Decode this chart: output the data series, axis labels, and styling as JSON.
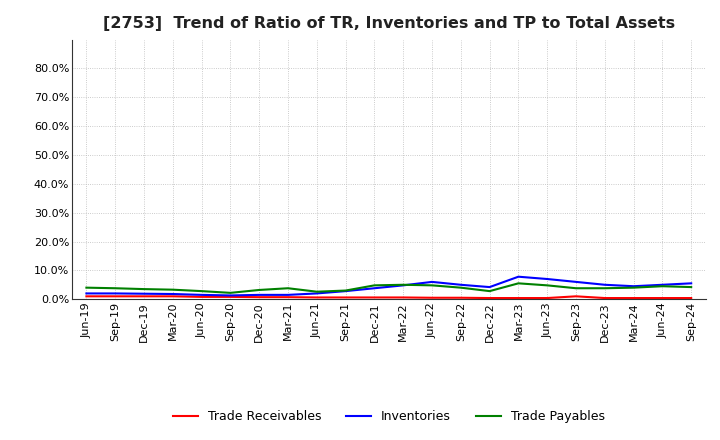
{
  "title": "[2753]  Trend of Ratio of TR, Inventories and TP to Total Assets",
  "x_labels": [
    "Jun-19",
    "Sep-19",
    "Dec-19",
    "Mar-20",
    "Jun-20",
    "Sep-20",
    "Dec-20",
    "Mar-21",
    "Jun-21",
    "Sep-21",
    "Dec-21",
    "Mar-22",
    "Jun-22",
    "Sep-22",
    "Dec-22",
    "Mar-23",
    "Jun-23",
    "Sep-23",
    "Dec-23",
    "Mar-24",
    "Jun-24",
    "Sep-24"
  ],
  "trade_receivables": [
    0.01,
    0.01,
    0.01,
    0.01,
    0.008,
    0.008,
    0.007,
    0.007,
    0.006,
    0.006,
    0.006,
    0.006,
    0.005,
    0.005,
    0.004,
    0.004,
    0.004,
    0.01,
    0.004,
    0.004,
    0.004,
    0.004
  ],
  "inventories": [
    0.02,
    0.02,
    0.019,
    0.018,
    0.015,
    0.013,
    0.015,
    0.015,
    0.02,
    0.028,
    0.038,
    0.048,
    0.06,
    0.05,
    0.042,
    0.078,
    0.07,
    0.06,
    0.05,
    0.045,
    0.05,
    0.055
  ],
  "trade_payables": [
    0.04,
    0.038,
    0.035,
    0.033,
    0.028,
    0.022,
    0.032,
    0.038,
    0.026,
    0.03,
    0.048,
    0.05,
    0.048,
    0.04,
    0.028,
    0.055,
    0.048,
    0.038,
    0.038,
    0.04,
    0.045,
    0.042
  ],
  "tr_color": "#ff0000",
  "inv_color": "#0000ff",
  "tp_color": "#008000",
  "ylim": [
    0.0,
    0.9
  ],
  "yticks": [
    0.0,
    0.1,
    0.2,
    0.3,
    0.4,
    0.5,
    0.6,
    0.7,
    0.8
  ],
  "bg_color": "#ffffff",
  "grid_color": "#bbbbbb",
  "title_fontsize": 11.5,
  "legend_fontsize": 9,
  "tick_fontsize": 8,
  "line_width": 1.5
}
